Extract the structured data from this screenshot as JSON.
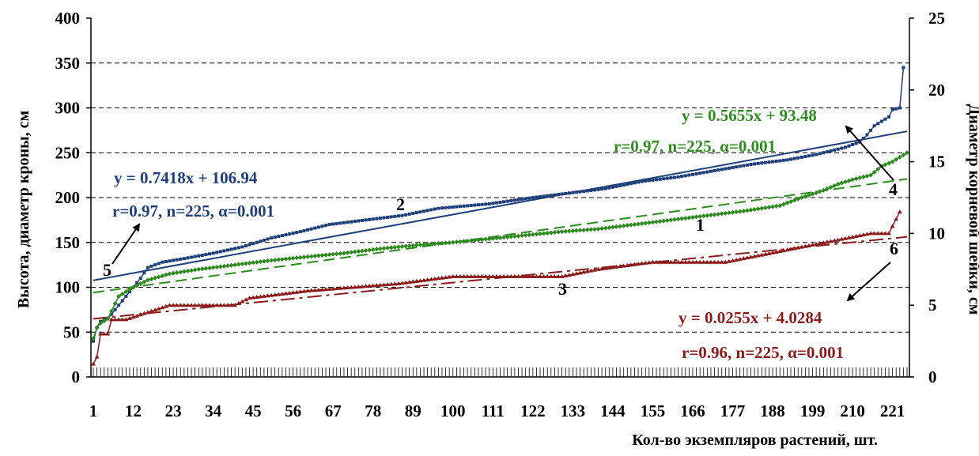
{
  "chart_data": {
    "type": "line",
    "xlabel": "Кол-во экземпляров растений, шт.",
    "ylabel_left": "Высота, диаметр кроны, см",
    "ylabel_right": "Диаметр корневой шейки, см",
    "x_range": [
      1,
      225
    ],
    "x_tick_labels": [
      "1",
      "12",
      "23",
      "34",
      "45",
      "56",
      "67",
      "78",
      "89",
      "100",
      "111",
      "122",
      "133",
      "144",
      "155",
      "166",
      "177",
      "188",
      "199",
      "210",
      "221"
    ],
    "y_left": {
      "range": [
        0,
        400
      ],
      "ticks": [
        "0",
        "50",
        "100",
        "150",
        "200",
        "250",
        "300",
        "350",
        "400"
      ]
    },
    "y_right": {
      "range": [
        0,
        25
      ],
      "ticks": [
        "0",
        "5",
        "10",
        "15",
        "20",
        "25"
      ]
    },
    "grid": "horizontal dashed",
    "series": [
      {
        "label": "2",
        "color": "#1f3f7a",
        "marker": "square",
        "axis": "left",
        "points": [
          [
            1,
            40
          ],
          [
            2,
            55
          ],
          [
            3,
            62
          ],
          [
            5,
            65
          ],
          [
            9,
            85
          ],
          [
            12,
            100
          ],
          [
            14,
            110
          ],
          [
            16,
            122
          ],
          [
            20,
            128
          ],
          [
            26,
            132
          ],
          [
            34,
            138
          ],
          [
            42,
            145
          ],
          [
            50,
            155
          ],
          [
            58,
            162
          ],
          [
            66,
            170
          ],
          [
            76,
            175
          ],
          [
            86,
            180
          ],
          [
            96,
            188
          ],
          [
            110,
            193
          ],
          [
            122,
            200
          ],
          [
            132,
            205
          ],
          [
            142,
            210
          ],
          [
            152,
            218
          ],
          [
            162,
            223
          ],
          [
            172,
            230
          ],
          [
            182,
            237
          ],
          [
            192,
            242
          ],
          [
            200,
            248
          ],
          [
            208,
            256
          ],
          [
            212,
            262
          ],
          [
            214,
            270
          ],
          [
            216,
            280
          ],
          [
            218,
            285
          ],
          [
            220,
            290
          ],
          [
            221,
            298
          ],
          [
            223,
            300
          ],
          [
            224,
            345
          ]
        ]
      },
      {
        "label": "1",
        "color": "#2e8b1f",
        "marker": "diamond",
        "axis": "left",
        "points": [
          [
            1,
            43
          ],
          [
            2,
            55
          ],
          [
            3,
            60
          ],
          [
            5,
            65
          ],
          [
            8,
            90
          ],
          [
            12,
            100
          ],
          [
            16,
            108
          ],
          [
            22,
            115
          ],
          [
            30,
            120
          ],
          [
            40,
            125
          ],
          [
            50,
            130
          ],
          [
            60,
            134
          ],
          [
            70,
            138
          ],
          [
            80,
            143
          ],
          [
            90,
            147
          ],
          [
            100,
            150
          ],
          [
            110,
            154
          ],
          [
            120,
            158
          ],
          [
            130,
            162
          ],
          [
            140,
            165
          ],
          [
            150,
            170
          ],
          [
            160,
            175
          ],
          [
            170,
            180
          ],
          [
            180,
            185
          ],
          [
            190,
            191
          ],
          [
            196,
            200
          ],
          [
            202,
            208
          ],
          [
            206,
            215
          ],
          [
            210,
            220
          ],
          [
            215,
            225
          ],
          [
            218,
            235
          ],
          [
            221,
            240
          ],
          [
            223,
            245
          ],
          [
            225,
            250
          ]
        ]
      },
      {
        "label": "3",
        "color": "#8b1a1a",
        "marker": "triangle",
        "axis": "right",
        "points": [
          [
            1,
            0.9
          ],
          [
            2,
            1.4
          ],
          [
            3,
            3.0
          ],
          [
            5,
            3.0
          ],
          [
            6,
            4.0
          ],
          [
            10,
            4.0
          ],
          [
            16,
            4.5
          ],
          [
            22,
            5.0
          ],
          [
            40,
            5.0
          ],
          [
            44,
            5.5
          ],
          [
            60,
            6.0
          ],
          [
            85,
            6.5
          ],
          [
            100,
            7.0
          ],
          [
            130,
            7.0
          ],
          [
            140,
            7.5
          ],
          [
            155,
            8.0
          ],
          [
            175,
            8.0
          ],
          [
            185,
            8.5
          ],
          [
            195,
            9.0
          ],
          [
            205,
            9.5
          ],
          [
            215,
            10.0
          ],
          [
            220,
            10.0
          ],
          [
            222,
            11.0
          ],
          [
            223,
            11.5
          ]
        ]
      }
    ],
    "trendlines": [
      {
        "label": "5",
        "color": "#1f3f7a",
        "style": "solid",
        "axis": "left",
        "slope": 0.7418,
        "intercept": 106.94,
        "equation": "y = 0.7418x + 106.94",
        "stats": "r=0.97, n=225,  α=0.001"
      },
      {
        "label": "4",
        "color": "#2e8b1f",
        "style": "dashed",
        "axis": "left",
        "slope": 0.5655,
        "intercept": 93.48,
        "equation": "y = 0.5655x + 93.48",
        "stats": "r=0.97, n=225,  α=0.001"
      },
      {
        "label": "6",
        "color": "#8b1a1a",
        "style": "dashdot",
        "axis": "right",
        "slope": 0.0255,
        "intercept": 4.0284,
        "equation": "y = 0.0255x + 4.0284",
        "stats": "r=0.96, n=225,  α=0.001"
      }
    ]
  }
}
